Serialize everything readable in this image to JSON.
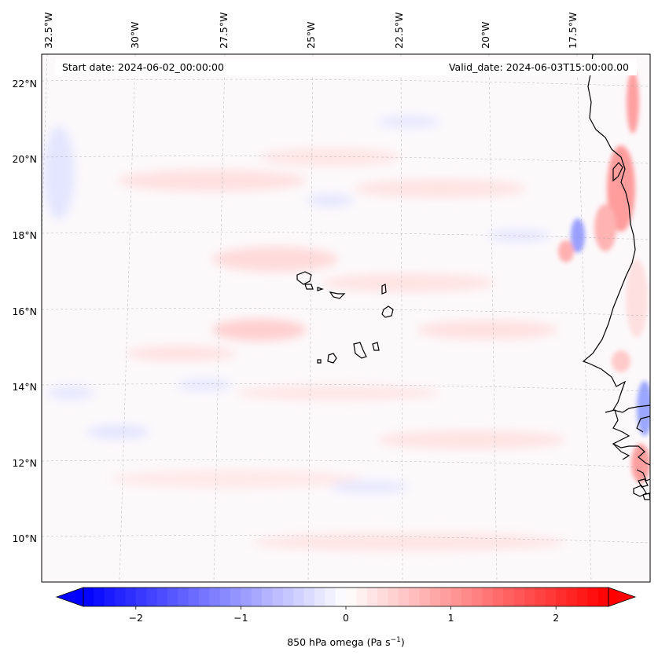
{
  "map": {
    "start_label": "Start date: 2024-06-02_00:00:00",
    "valid_label": "Valid_date: 2024-06-03T15:00:00.00",
    "lon_labels": [
      "32.5°W",
      "30°W",
      "27.5°W",
      "25°W",
      "22.5°W",
      "20°W",
      "17.5°W"
    ],
    "lat_labels": [
      "22°N",
      "20°N",
      "18°N",
      "16°N",
      "14°N",
      "12°N",
      "10°N"
    ],
    "field": "850 hPa omega",
    "extent": {
      "lon_min": -33.5,
      "lon_max": -15.2,
      "lat_min": 8.9,
      "lat_max": 22.8
    }
  },
  "colorbar": {
    "label_text": "850 hPa omega (Pa s",
    "label_exp": "−1",
    "label_close": ")",
    "ticks": [
      "−2",
      "−1",
      "0",
      "1",
      "2"
    ],
    "tick_values": [
      -2,
      -1,
      0,
      1,
      2
    ],
    "range": [
      -2.5,
      2.5
    ],
    "cmap": "bwr",
    "colors": {
      "low": "#0000ff",
      "mid": "#ffffff",
      "high": "#ff0000"
    }
  }
}
